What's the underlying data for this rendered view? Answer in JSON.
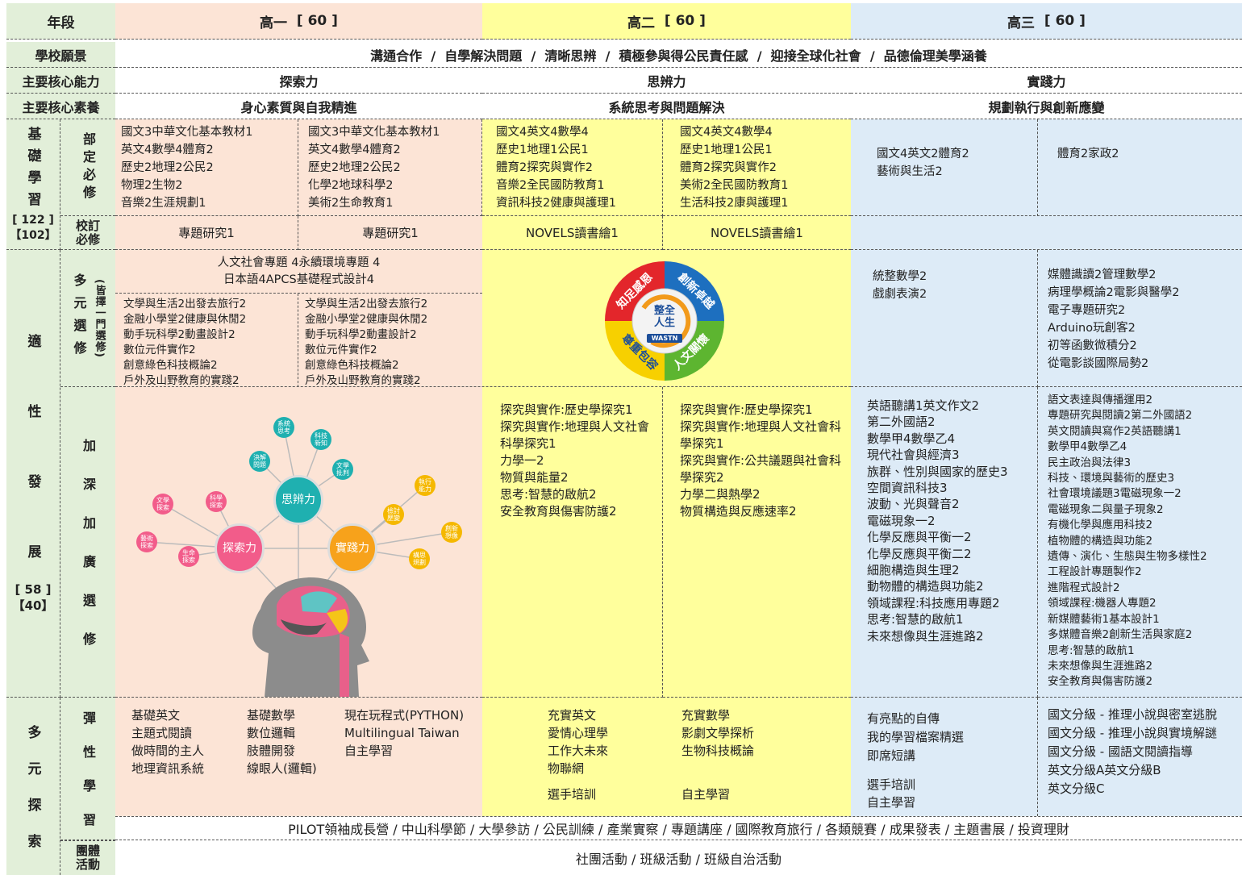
{
  "header": {
    "label": "年段",
    "grades": [
      {
        "name": "高一",
        "credits": "[ 60 ]"
      },
      {
        "name": "高二",
        "credits": "[ 60 ]"
      },
      {
        "name": "高三",
        "credits": "[ 60 ]"
      }
    ]
  },
  "vision": {
    "label": "學校願景",
    "text": "溝通合作  /  自學解決問題  /  清晰思辨  /  積極參與得公民責任感  /  迎接全球化社會  /  品德倫理美學涵養"
  },
  "core_abilities": {
    "label": "主要核心能力",
    "values": [
      "探索力",
      "思辨力",
      "實踐力"
    ]
  },
  "core_literacy": {
    "label": "主要核心素養",
    "values": [
      "身心素質與自我精進",
      "系統思考與問題解決",
      "規劃執行與創新應變"
    ]
  },
  "basic": {
    "label": "基礎學習",
    "credits": [
      "[ 122 ]",
      "【102】"
    ],
    "required": {
      "label": "部定必修",
      "cells": [
        [
          [
            "國文3",
            "中華文化基本教材1"
          ],
          [
            "英文4",
            "數學4",
            "體育2"
          ],
          [
            "歷史2",
            "地理2",
            "公民2"
          ],
          [
            "物理2",
            "生物2"
          ],
          [
            "音樂2",
            "生涯規劃1"
          ]
        ],
        [
          [
            "國文3",
            "中華文化基本教材1"
          ],
          [
            "英文4",
            "數學4",
            "體育2"
          ],
          [
            "歷史2",
            "地理2",
            "公民2"
          ],
          [
            "化學2",
            "地球科學2"
          ],
          [
            "美術2",
            "生命教育1"
          ]
        ],
        [
          [
            "國文4",
            "英文4",
            "數學4"
          ],
          [
            "歷史1",
            "地理1",
            "公民1"
          ],
          [
            "體育2",
            "探究與實作2"
          ],
          [
            "音樂2",
            "全民國防教育1"
          ],
          [
            "資訊科技2",
            "健康與護理1"
          ]
        ],
        [
          [
            "國文4",
            "英文4",
            "數學4"
          ],
          [
            "歷史1",
            "地理1",
            "公民1"
          ],
          [
            "體育2",
            "探究與實作2"
          ],
          [
            "美術2",
            "全民國防教育1"
          ],
          [
            "生活科技2",
            "康與護理1"
          ]
        ],
        [
          [
            "國文4",
            "英文2",
            "體育2"
          ],
          [
            "藝術與生活2"
          ]
        ],
        [
          [
            "體育2",
            "家政2"
          ]
        ]
      ]
    },
    "school_required": {
      "label": "校訂必修",
      "cells": [
        "專題研究1",
        "專題研究1",
        "NOVELS讀書繪1",
        "NOVELS讀書繪1"
      ]
    }
  },
  "adaptive": {
    "label": "適性發展",
    "credits": [
      "[ 58 ]",
      "【40】"
    ],
    "multi_elective": {
      "label": "多元選修",
      "note": "(皆擇一門選修)",
      "g10_common": [
        [
          "人文社會專題 4",
          "永續環境專題 4"
        ],
        [
          "日本語4",
          "APCS基礎程式設計4"
        ]
      ],
      "g10a": [
        [
          "文學與生活2",
          "出發去旅行2"
        ],
        [
          "金融小學堂2",
          "健康與休閒2"
        ],
        [
          "動手玩科學2",
          "動畫設計2"
        ],
        [
          "數位元件實作2"
        ],
        [
          "創意綠色科技概論2"
        ],
        [
          "戶外及山野教育的實踐2"
        ]
      ],
      "g10b": [
        [
          "文學與生活2",
          "出發去旅行2"
        ],
        [
          "金融小學堂2",
          "健康與休閒2"
        ],
        [
          "動手玩科學2",
          "動畫設計2"
        ],
        [
          "數位元件實作2"
        ],
        [
          "創意綠色科技概論2"
        ],
        [
          "戶外及山野教育的實踐2"
        ]
      ],
      "g12a": [
        "統整數學2",
        "戲劇表演2"
      ],
      "g12b": [
        [
          "媒體識讀2",
          "管理數學2"
        ],
        [
          "病理學概論2",
          "電影與醫學2"
        ],
        [
          "電子專題研究2"
        ],
        [
          "Arduino玩創客2"
        ],
        [
          "初等函數微積分2"
        ],
        [
          "從電影談國際局勢2"
        ]
      ]
    },
    "advanced": {
      "label": "加深加廣選修",
      "g11a": [
        "探究與實作:歷史學探究1",
        "探究與實作:地理與人文社會科學探究1",
        "力學一2",
        "物質與能量2",
        "思考:智慧的啟航2",
        "安全教育與傷害防護2"
      ],
      "g11b": [
        "探究與實作:歷史學探究1",
        "探究與實作:地理與人文社會科學探究1",
        "探究與實作:公共議題與社會科學探究2",
        "力學二與熱學2",
        "物質構造與反應速率2"
      ],
      "g12a": [
        [
          "英語聽講1",
          "英文作文2"
        ],
        [
          "第二外國語2"
        ],
        [
          "數學甲4",
          "數學乙4"
        ],
        [
          "現代社會與經濟3"
        ],
        [
          "族群、性別與國家的歷史3"
        ],
        [
          "空間資訊科技3"
        ],
        [
          "波動、光與聲音2"
        ],
        [
          "電磁現象一2"
        ],
        [
          "化學反應與平衡一2"
        ],
        [
          "化學反應與平衡二2"
        ],
        [
          "細胞構造與生理2"
        ],
        [
          "動物體的構造與功能2"
        ],
        [
          "領域課程:科技應用專題2"
        ],
        [
          "思考:智慧的啟航1"
        ],
        [
          "未來想像與生涯進路2"
        ]
      ],
      "g12b": [
        [
          "語文表達與傳播運用2"
        ],
        [
          "專題研究與閱讀2",
          "第二外國語2"
        ],
        [
          "英文閱讀與寫作2",
          "英語聽講1"
        ],
        [
          "數學甲4",
          "數學乙4"
        ],
        [
          "民主政治與法律3"
        ],
        [
          "科技、環境與藝術的歷史3"
        ],
        [
          "社會環境議題3",
          "電磁現象一2"
        ],
        [
          "電磁現象二與量子現象2"
        ],
        [
          "有機化學與應用科技2"
        ],
        [
          "植物體的構造與功能2"
        ],
        [
          "遺傳、演化、生態與生物多樣性2"
        ],
        [
          "工程設計專題製作2"
        ],
        [
          "進階程式設計2"
        ],
        [
          "領域課程:機器人專題2"
        ],
        [
          "新媒體藝術1",
          "基本設計1"
        ],
        [
          "多媒體音樂2",
          "創新生活與家庭2"
        ],
        [
          "思考:智慧的啟航1"
        ],
        [
          "未來想像與生涯進路2"
        ],
        [
          "安全教育與傷害防護2"
        ]
      ]
    }
  },
  "emblem": {
    "quadrants": [
      "知足感恩",
      "創新卓越",
      "尊重包容",
      "人文關懷"
    ],
    "center": "整全人生",
    "badge": "WASTN"
  },
  "mind_map": {
    "core": [
      "思辨力",
      "探索力",
      "實踐力"
    ],
    "nodes": [
      "系統思考",
      "科技新知",
      "決解問題",
      "文學批判",
      "執行能力",
      "檢討歷變",
      "創新想像",
      "構思規劃",
      "文學探索",
      "科學探索",
      "藝術探索",
      "生命探索"
    ]
  },
  "explore": {
    "label": "多元探索",
    "flexible": {
      "label": "彈性學習",
      "g10": [
        [
          "基礎英文",
          "主題式閱讀",
          "做時間的主人",
          "地理資訊系統"
        ],
        [
          "基礎數學",
          "數位邏輯",
          "肢體開發",
          "線眼人(邏輯)"
        ],
        [
          "現在玩程式(PYTHON)",
          "Multilingual Taiwan",
          "自主學習"
        ]
      ],
      "g11a": [
        "充實英文",
        "愛情心理學",
        "工作大未來",
        "物聯網"
      ],
      "g11a_extra": "選手培訓",
      "g11b": [
        "充實數學",
        "影劇文學探析",
        "生物科技概論"
      ],
      "g11b_extra": "自主學習",
      "g12a": [
        "有亮點的自傳",
        "我的學習檔案精選",
        "即席短講"
      ],
      "g12a_extra": [
        "選手培訓",
        "自主學習"
      ],
      "g12b": [
        [
          "國文分級 - 推理小說與密室逃脫"
        ],
        [
          "國文分級 - 推理小說與實境解謎"
        ],
        [
          "國文分級 - 國語文閱讀指導"
        ],
        [
          "英文分級A",
          "英文分級B"
        ],
        [
          "英文分級C"
        ]
      ]
    },
    "activities": "PILOT領袖成長營 / 中山科學節 / 大學參訪 / 公民訓練 / 產業實察 / 專題講座 / 國際教育旅行 / 各類競賽 / 成果發表 / 主題書展 / 投資理財",
    "group": {
      "label": "團體活動",
      "text": "社團活動 / 班級活動 / 班級自治活動"
    }
  }
}
